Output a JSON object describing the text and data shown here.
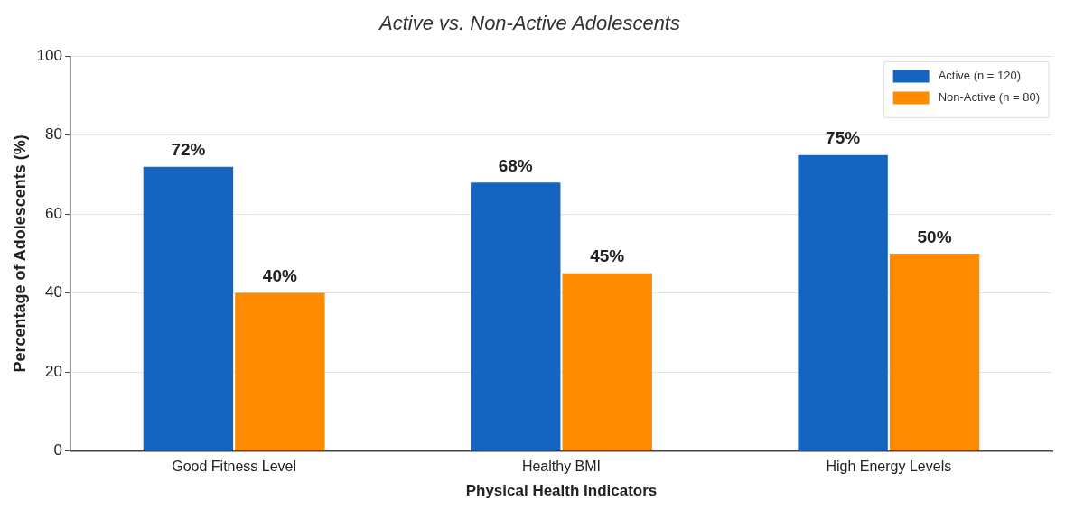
{
  "chart_data": {
    "type": "bar",
    "title": "Active vs. Non-Active Adolescents",
    "xlabel": "Physical Health Indicators",
    "ylabel": "Percentage of Adolescents (%)",
    "categories": [
      "Good Fitness Level",
      "Healthy BMI",
      "High Energy Levels"
    ],
    "series": [
      {
        "name": "Active (n = 120)",
        "color": "#1565c0",
        "values": [
          72,
          68,
          75
        ],
        "value_labels": [
          "72%",
          "68%",
          "75%"
        ]
      },
      {
        "name": "Non-Active (n = 80)",
        "color": "#ff8c00",
        "values": [
          40,
          45,
          50
        ],
        "value_labels": [
          "40%",
          "45%",
          "50%"
        ]
      }
    ],
    "ylim": [
      0,
      100
    ],
    "yticks": [
      0,
      20,
      40,
      60,
      80,
      100
    ],
    "grid": "y",
    "legend": "top right"
  }
}
